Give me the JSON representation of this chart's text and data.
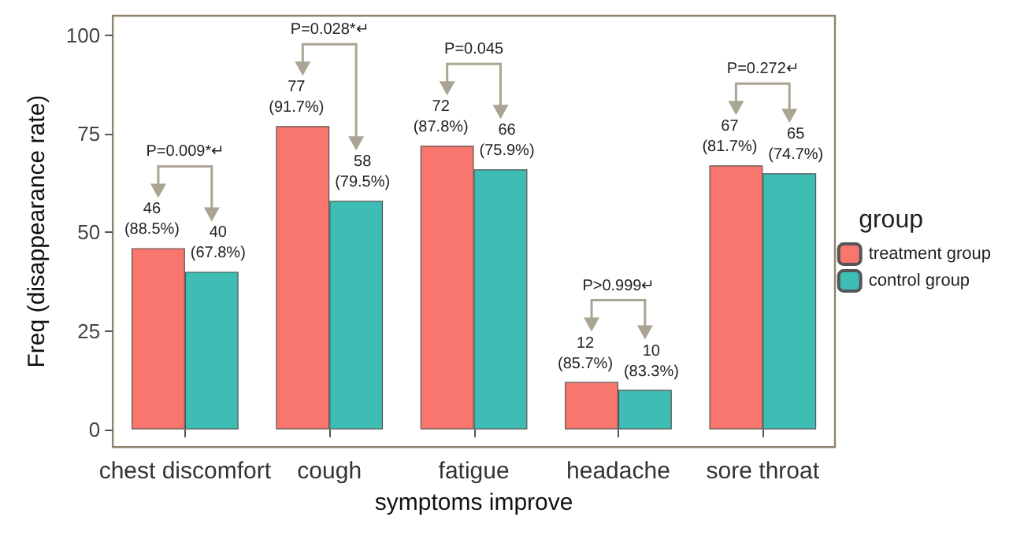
{
  "chart_data": {
    "type": "bar",
    "xlabel": "symptoms improve",
    "ylabel": "Freq (disappearance rate)",
    "legend_title": "group",
    "categories": [
      "chest discomfort",
      "cough",
      "fatigue",
      "headache",
      "sore throat"
    ],
    "series": [
      {
        "name": "treatment group",
        "color": "#f8766d",
        "values": [
          46,
          77,
          72,
          12,
          67
        ],
        "value_labels": [
          "46\n(88.5%)",
          "77\n(91.7%)",
          "72\n(87.8%)",
          "12\n(85.7%)",
          "67\n(81.7%)"
        ]
      },
      {
        "name": "control group",
        "color": "#3dbdb4",
        "values": [
          40,
          58,
          66,
          10,
          65
        ],
        "value_labels": [
          "40\n(67.8%)",
          "58\n(79.5%)",
          "66\n(75.9%)",
          "10\n(83.3%)",
          "65\n(74.7%)"
        ]
      }
    ],
    "annotations": [
      "P=0.009*↵",
      "P=0.028*↵",
      "P=0.045",
      "P>0.999↵",
      "P=0.272↵"
    ],
    "ylim": [
      -4.5,
      105
    ],
    "yticks": [
      0,
      25,
      50,
      75,
      100
    ],
    "grid": false,
    "legend": "right"
  }
}
